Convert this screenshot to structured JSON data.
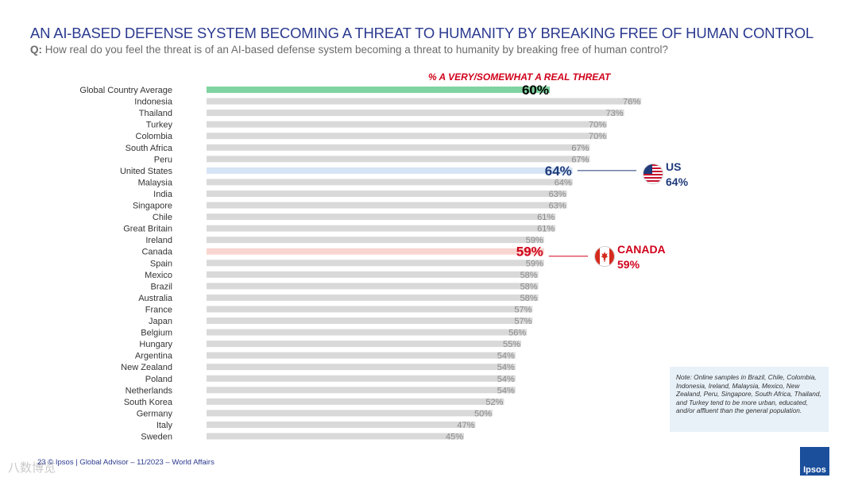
{
  "header": {
    "title": "AN AI-BASED DEFENSE SYSTEM BECOMING A THREAT TO HUMANITY BY BREAKING FREE OF HUMAN CONTROL",
    "question_prefix": "Q:",
    "question": "How real do you feel the threat is of an AI-based defense system becoming a threat to humanity by breaking free of human control?"
  },
  "chart_data": {
    "type": "bar",
    "orientation": "horizontal",
    "title": "% A VERY/SOMEWHAT A REAL THREAT",
    "unit": "%",
    "xlim": [
      0,
      100
    ],
    "categories": [
      "Global Country Average",
      "Indonesia",
      "Thailand",
      "Turkey",
      "Colombia",
      "South Africa",
      "Peru",
      "United States",
      "Malaysia",
      "India",
      "Singapore",
      "Chile",
      "Great Britain",
      "Ireland",
      "Canada",
      "Spain",
      "Mexico",
      "Brazil",
      "Australia",
      "France",
      "Japan",
      "Belgium",
      "Hungary",
      "Argentina",
      "New Zealand",
      "Poland",
      "Netherlands",
      "South Korea",
      "Germany",
      "Italy",
      "Sweden"
    ],
    "values": [
      60,
      76,
      73,
      70,
      70,
      67,
      67,
      64,
      64,
      63,
      63,
      61,
      61,
      59,
      59,
      59,
      58,
      58,
      58,
      57,
      57,
      56,
      55,
      54,
      54,
      54,
      54,
      52,
      50,
      47,
      45
    ],
    "highlights": {
      "Global Country Average": "#7fd3a0",
      "United States": "#d6e4f5",
      "Canada": "#f8d5cf"
    },
    "highlight_value_colors": {
      "Global Country Average": "#000000",
      "United States": "#1f3b7a",
      "Canada": "#d0021b"
    },
    "bar_color": "#d9d9d9"
  },
  "callouts": {
    "us": {
      "name": "US",
      "value": "64%",
      "color": "#1f3b7a"
    },
    "canada": {
      "name": "CANADA",
      "value": "59%",
      "color": "#d0021b"
    }
  },
  "note": "Note: Online samples in Brazil, Chile, Colombia, Indonesia, Ireland, Malaysia, Mexico, New Zealand, Peru, Singapore, South Africa, Thailand, and Turkey tend to be more urban, educated, and/or affluent than the general population.",
  "footer": {
    "page": "23",
    "text": "© Ipsos | Global Advisor – 11/2023 – World Affairs"
  },
  "logo": "Ipsos",
  "watermark": "八数博览"
}
